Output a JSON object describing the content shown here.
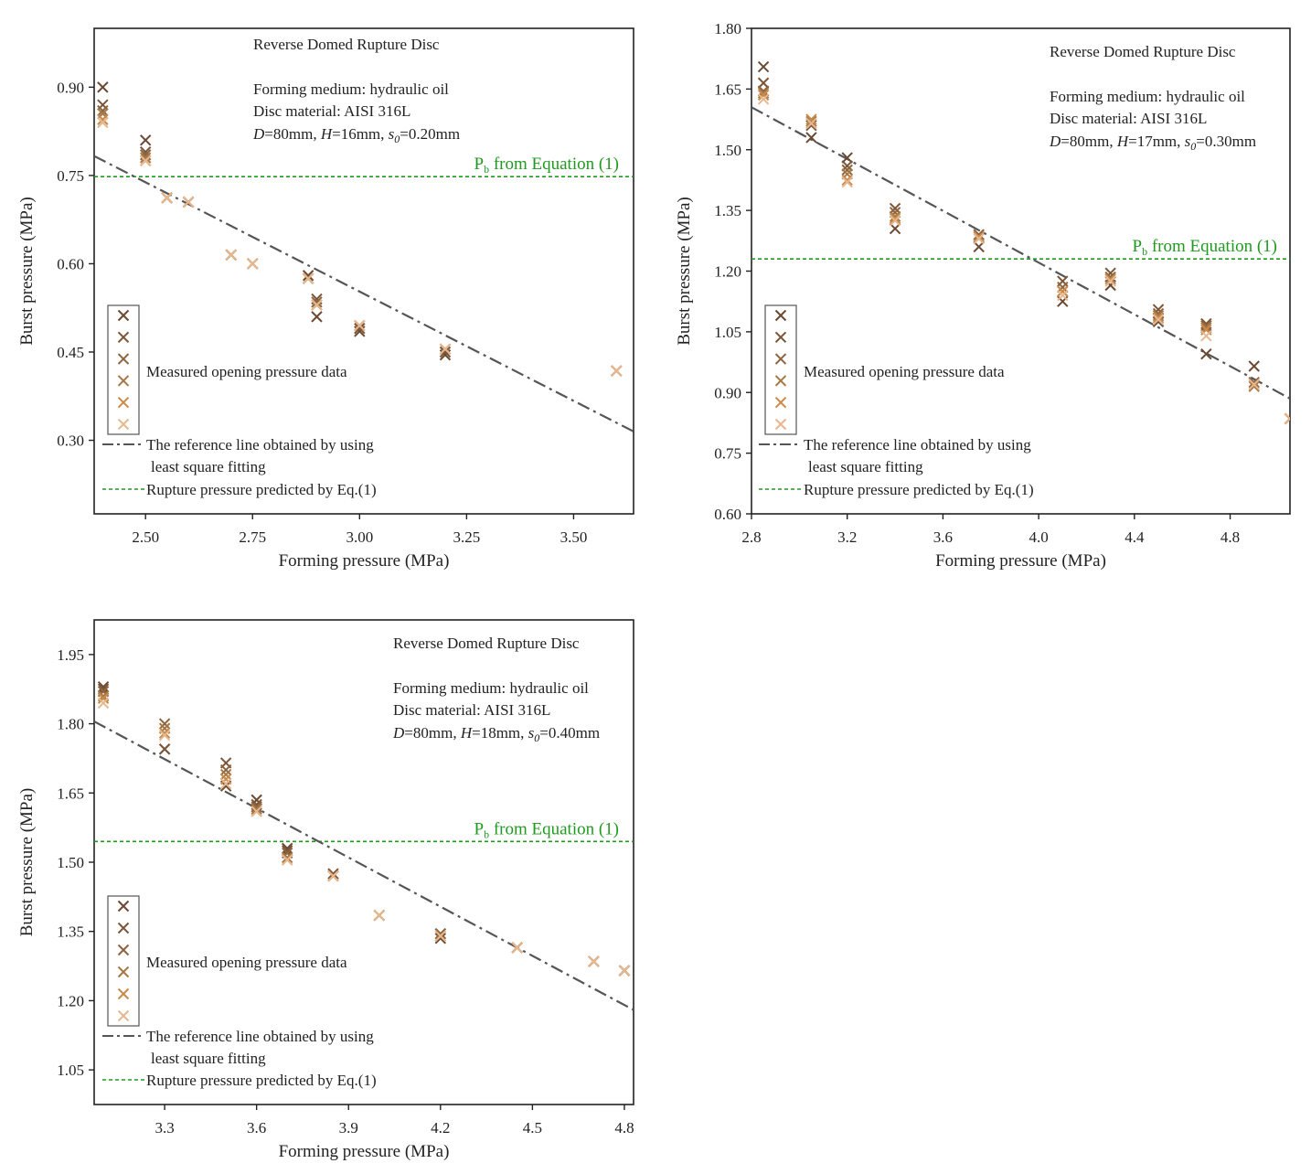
{
  "colors": {
    "markers": [
      "#6b4a33",
      "#7a5538",
      "#8c6440",
      "#a77845",
      "#c98a4a",
      "#e6b890"
    ],
    "fit_line": "#555555",
    "pb_line": "#1f9a1f"
  },
  "legend": {
    "measured": "Measured opening pressure data",
    "ref_line_1": "The reference line obtained by using",
    "ref_line_2": "least square fitting",
    "pred_line": "Rupture pressure predicted by Eq.(1)"
  },
  "chart_data": [
    {
      "type": "scatter",
      "title": "Reverse Domed Rupture Disc",
      "info": {
        "medium": "Forming medium: hydraulic oil",
        "material": "Disc material: AISI 316L",
        "D": "D",
        "D_val": "=80mm, ",
        "H": "H",
        "H_val": "=16mm, ",
        "s": "s",
        "s_sub": "0",
        "s_val": "=0.20mm"
      },
      "pb_label": {
        "P": "P",
        "sub": "b",
        "rest": " from Equation (1)"
      },
      "xlabel": "Forming pressure (MPa)",
      "ylabel": "Burst pressure (MPa)",
      "xlim": [
        2.38,
        3.64
      ],
      "ylim": [
        0.175,
        1.0
      ],
      "xticks": [
        2.5,
        2.75,
        3.0,
        3.25,
        3.5
      ],
      "xtick_labels": [
        "2.50",
        "2.75",
        "3.00",
        "3.25",
        "3.50"
      ],
      "yticks": [
        0.3,
        0.45,
        0.6,
        0.75,
        0.9
      ],
      "ytick_labels": [
        "0.30",
        "0.45",
        "0.60",
        "0.75",
        "0.90"
      ],
      "pb": 0.748,
      "fit": {
        "x": [
          2.38,
          3.64
        ],
        "y": [
          0.783,
          0.315
        ]
      },
      "points": [
        {
          "x": 2.4,
          "y": [
            0.9,
            0.87,
            0.86,
            0.855,
            0.845,
            0.84
          ]
        },
        {
          "x": 2.5,
          "y": [
            0.81,
            0.79,
            0.785,
            0.78,
            0.775,
            0.775
          ]
        },
        {
          "x": 2.55,
          "y": [
            0.712,
            0.712,
            0.712,
            0.712,
            0.712,
            0.712
          ]
        },
        {
          "x": 2.6,
          "y": [
            0.705,
            0.705,
            0.705,
            0.705,
            0.705,
            0.705
          ]
        },
        {
          "x": 2.7,
          "y": [
            0.615,
            0.615,
            0.615,
            0.615,
            0.615,
            0.615
          ]
        },
        {
          "x": 2.75,
          "y": [
            0.6,
            0.6,
            0.6,
            0.6,
            0.6,
            0.6
          ]
        },
        {
          "x": 2.88,
          "y": [
            0.58,
            0.575,
            0.575,
            0.575,
            0.575,
            0.575
          ]
        },
        {
          "x": 2.9,
          "y": [
            0.51,
            0.54,
            0.535,
            0.53,
            0.53,
            0.53
          ]
        },
        {
          "x": 3.0,
          "y": [
            0.485,
            0.49,
            0.495,
            0.495,
            0.495,
            0.495
          ]
        },
        {
          "x": 3.2,
          "y": [
            0.445,
            0.45,
            0.455,
            0.455,
            0.455,
            0.455
          ]
        },
        {
          "x": 3.6,
          "y": [
            0.418,
            0.418,
            0.418,
            0.418,
            0.418,
            0.418
          ]
        }
      ]
    },
    {
      "type": "scatter",
      "title": "Reverse Domed Rupture Disc",
      "info": {
        "medium": "Forming medium: hydraulic oil",
        "material": "Disc material: AISI 316L",
        "D": "D",
        "D_val": "=80mm, ",
        "H": "H",
        "H_val": "=17mm, ",
        "s": "s",
        "s_sub": "0",
        "s_val": "=0.30mm"
      },
      "pb_label": {
        "P": "P",
        "sub": "b",
        "rest": " from Equation (1)"
      },
      "xlabel": "Forming pressure (MPa)",
      "ylabel": "Burst pressure (MPa)",
      "xlim": [
        2.8,
        5.05
      ],
      "ylim": [
        0.6,
        1.8
      ],
      "xticks": [
        2.8,
        3.2,
        3.6,
        4.0,
        4.4,
        4.8
      ],
      "xtick_labels": [
        "2.8",
        "3.2",
        "3.6",
        "4.0",
        "4.4",
        "4.8"
      ],
      "yticks": [
        0.6,
        0.75,
        0.9,
        1.05,
        1.2,
        1.35,
        1.5,
        1.65,
        1.8
      ],
      "ytick_labels": [
        "0.60",
        "0.75",
        "0.90",
        "1.05",
        "1.20",
        "1.35",
        "1.50",
        "1.65",
        "1.80"
      ],
      "pb": 1.23,
      "fit": {
        "x": [
          2.8,
          5.05
        ],
        "y": [
          1.605,
          0.885
        ]
      },
      "points": [
        {
          "x": 2.85,
          "y": [
            1.705,
            1.665,
            1.645,
            1.64,
            1.635,
            1.625
          ]
        },
        {
          "x": 3.05,
          "y": [
            1.53,
            1.56,
            1.565,
            1.57,
            1.575,
            1.565
          ]
        },
        {
          "x": 3.2,
          "y": [
            1.48,
            1.46,
            1.45,
            1.44,
            1.425,
            1.42
          ]
        },
        {
          "x": 3.4,
          "y": [
            1.305,
            1.355,
            1.345,
            1.335,
            1.33,
            1.325
          ]
        },
        {
          "x": 3.75,
          "y": [
            1.26,
            1.29,
            1.29,
            1.285,
            1.285,
            1.28
          ]
        },
        {
          "x": 4.1,
          "y": [
            1.125,
            1.175,
            1.16,
            1.15,
            1.15,
            1.14
          ]
        },
        {
          "x": 4.3,
          "y": [
            1.165,
            1.195,
            1.185,
            1.18,
            1.18,
            1.175
          ]
        },
        {
          "x": 4.5,
          "y": [
            1.075,
            1.105,
            1.095,
            1.09,
            1.085,
            1.08
          ]
        },
        {
          "x": 4.7,
          "y": [
            0.995,
            1.07,
            1.065,
            1.06,
            1.055,
            1.04
          ]
        },
        {
          "x": 4.9,
          "y": [
            0.965,
            0.92,
            0.925,
            0.915,
            0.92,
            0.92
          ]
        },
        {
          "x": 5.05,
          "y": [
            0.835,
            0.835,
            0.835,
            0.835,
            0.835,
            0.835
          ]
        }
      ]
    },
    {
      "type": "scatter",
      "title": "Reverse Domed Rupture Disc",
      "info": {
        "medium": "Forming medium: hydraulic oil",
        "material": "Disc material: AISI 316L",
        "D": "D",
        "D_val": "=80mm, ",
        "H": "H",
        "H_val": "=18mm, ",
        "s": "s",
        "s_sub": "0",
        "s_val": "=0.40mm"
      },
      "pb_label": {
        "P": "P",
        "sub": "b",
        "rest": " from Equation (1)"
      },
      "xlabel": "Forming pressure (MPa)",
      "ylabel": "Burst pressure (MPa)",
      "xlim": [
        3.07,
        4.83
      ],
      "ylim": [
        0.975,
        2.025
      ],
      "xticks": [
        3.3,
        3.6,
        3.9,
        4.2,
        4.5,
        4.8
      ],
      "xtick_labels": [
        "3.3",
        "3.6",
        "3.9",
        "4.2",
        "4.5",
        "4.8"
      ],
      "yticks": [
        1.05,
        1.2,
        1.35,
        1.5,
        1.65,
        1.8,
        1.95
      ],
      "ytick_labels": [
        "1.05",
        "1.20",
        "1.35",
        "1.50",
        "1.65",
        "1.80",
        "1.95"
      ],
      "pb": 1.545,
      "fit": {
        "x": [
          3.07,
          4.83
        ],
        "y": [
          1.805,
          1.18
        ]
      },
      "points": [
        {
          "x": 3.1,
          "y": [
            1.88,
            1.875,
            1.87,
            1.86,
            1.855,
            1.845
          ]
        },
        {
          "x": 3.3,
          "y": [
            1.745,
            1.745,
            1.8,
            1.79,
            1.78,
            1.775
          ]
        },
        {
          "x": 3.5,
          "y": [
            1.665,
            1.715,
            1.7,
            1.69,
            1.68,
            1.67
          ]
        },
        {
          "x": 3.6,
          "y": [
            1.635,
            1.625,
            1.62,
            1.615,
            1.61,
            1.61
          ]
        },
        {
          "x": 3.7,
          "y": [
            1.53,
            1.525,
            1.52,
            1.51,
            1.505,
            1.505
          ]
        },
        {
          "x": 3.85,
          "y": [
            1.47,
            1.475,
            1.47,
            1.47,
            1.47,
            1.47
          ]
        },
        {
          "x": 4.0,
          "y": [
            1.385,
            1.385,
            1.385,
            1.385,
            1.385,
            1.385
          ]
        },
        {
          "x": 4.2,
          "y": [
            1.335,
            1.345,
            1.345,
            1.34,
            1.34,
            1.34
          ]
        },
        {
          "x": 4.45,
          "y": [
            1.315,
            1.315,
            1.315,
            1.315,
            1.315,
            1.315
          ]
        },
        {
          "x": 4.7,
          "y": [
            1.285,
            1.285,
            1.285,
            1.285,
            1.285,
            1.285
          ]
        },
        {
          "x": 4.8,
          "y": [
            1.265,
            1.265,
            1.265,
            1.265,
            1.265,
            1.265
          ]
        }
      ]
    }
  ]
}
